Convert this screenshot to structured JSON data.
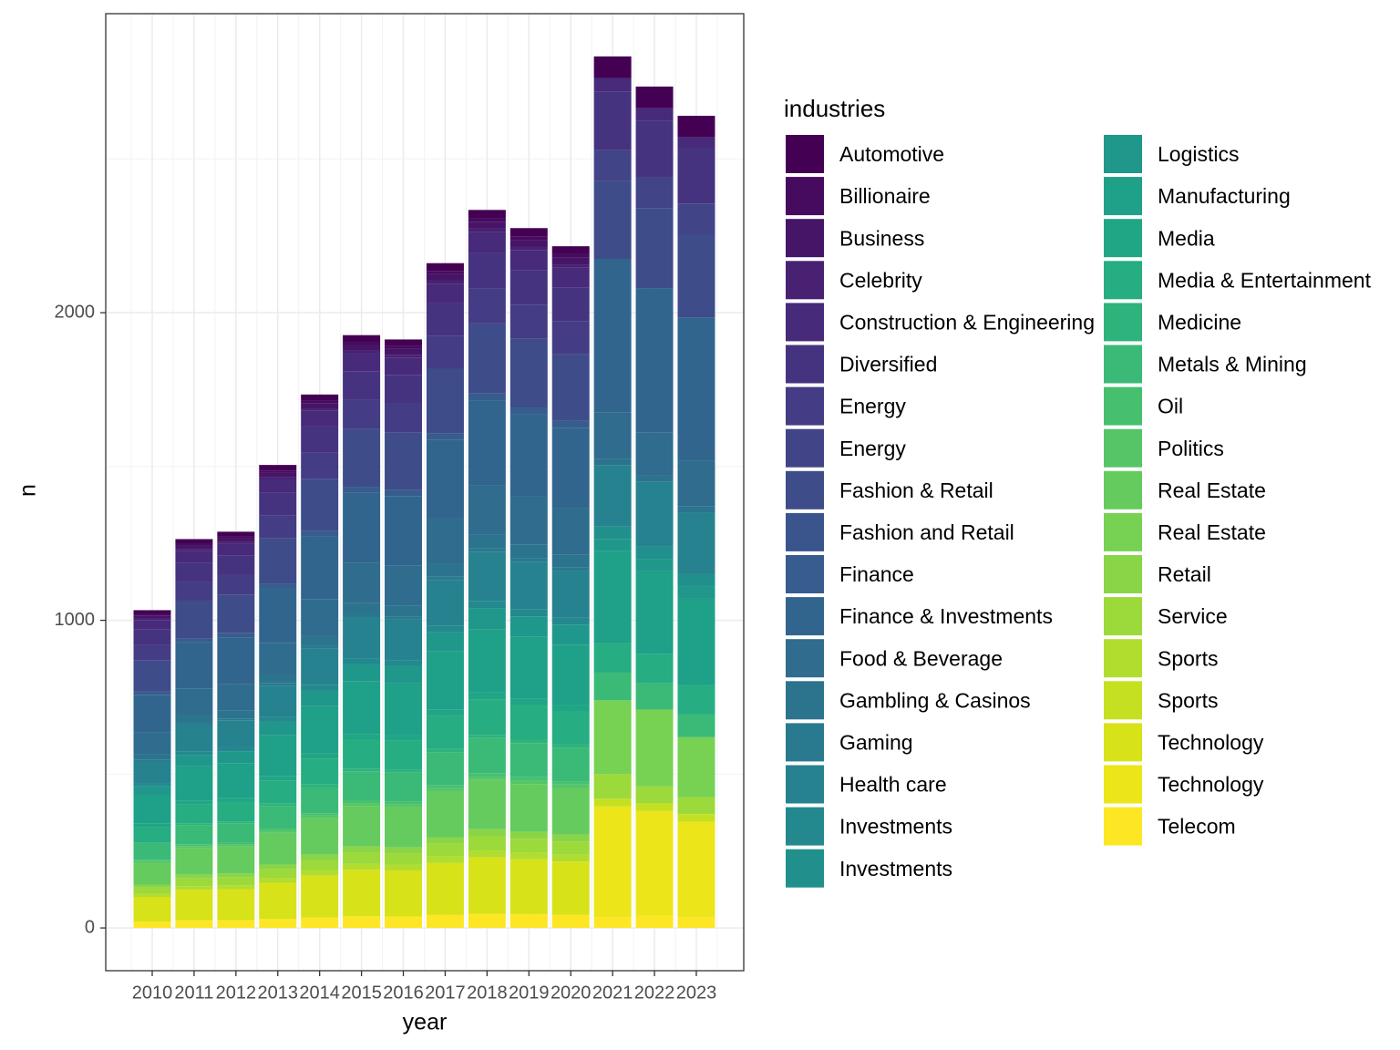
{
  "chart_data": {
    "type": "bar",
    "stacked": true,
    "grid": true,
    "legend_position": "right",
    "xlabel": "year",
    "ylabel": "n",
    "legend_title": "industries",
    "categories": [
      "2010",
      "2011",
      "2012",
      "2013",
      "2014",
      "2015",
      "2016",
      "2017",
      "2018",
      "2019",
      "2020",
      "2021",
      "2022",
      "2023"
    ],
    "ylim": [
      -139,
      2972
    ],
    "yticks": [
      0,
      1000,
      2000
    ],
    "series": [
      {
        "name": "Automotive",
        "color": "#440154",
        "values": [
          12,
          15,
          15,
          18,
          20,
          23,
          22,
          25,
          27,
          27,
          26,
          70,
          70,
          70
        ]
      },
      {
        "name": "Billionaire",
        "color": "#460B5E",
        "values": [
          5,
          6,
          6,
          7,
          8,
          9,
          9,
          11,
          11,
          11,
          11,
          0,
          0,
          0
        ]
      },
      {
        "name": "Business",
        "color": "#471567",
        "values": [
          10,
          12,
          13,
          15,
          17,
          19,
          19,
          21,
          23,
          22,
          22,
          0,
          0,
          0
        ]
      },
      {
        "name": "Celebrity",
        "color": "#482173",
        "values": [
          5,
          6,
          6,
          7,
          8,
          9,
          9,
          11,
          11,
          11,
          11,
          0,
          0,
          0
        ]
      },
      {
        "name": "Construction & Engineering",
        "color": "#472A7A",
        "values": [
          30,
          37,
          38,
          44,
          51,
          57,
          56,
          63,
          69,
          67,
          65,
          45,
          40,
          35
        ]
      },
      {
        "name": "Diversified",
        "color": "#46337F",
        "values": [
          51,
          62,
          63,
          74,
          85,
          94,
          94,
          106,
          114,
          111,
          108,
          190,
          185,
          180
        ]
      },
      {
        "name": "Energy",
        "color": "#443C84",
        "values": [
          51,
          62,
          63,
          74,
          85,
          94,
          94,
          106,
          114,
          111,
          108,
          0,
          0,
          0
        ]
      },
      {
        "name": "Energy",
        "color": "#414487",
        "values": [
          0,
          0,
          0,
          0,
          0,
          0,
          0,
          0,
          0,
          0,
          0,
          100,
          100,
          100
        ]
      },
      {
        "name": "Fashion & Retail",
        "color": "#3E4C8A",
        "values": [
          101,
          124,
          126,
          147,
          170,
          189,
          187,
          211,
          228,
          223,
          217,
          253,
          260,
          270
        ]
      },
      {
        "name": "Fashion and Retail",
        "color": "#3A548C",
        "values": [
          0,
          0,
          0,
          0,
          0,
          0,
          0,
          0,
          0,
          0,
          0,
          0,
          0,
          0
        ]
      },
      {
        "name": "Finance",
        "color": "#365D8D",
        "values": [
          10,
          12,
          13,
          15,
          17,
          19,
          19,
          21,
          23,
          22,
          22,
          0,
          0,
          0
        ]
      },
      {
        "name": "Finance & Investments",
        "color": "#32658E",
        "values": [
          121,
          149,
          151,
          177,
          204,
          226,
          225,
          254,
          274,
          267,
          260,
          500,
          470,
          465
        ]
      },
      {
        "name": "Food & Beverage",
        "color": "#2F6C8E",
        "values": [
          71,
          87,
          88,
          103,
          119,
          132,
          131,
          148,
          160,
          156,
          152,
          150,
          140,
          150
        ]
      },
      {
        "name": "Gambling & Casinos",
        "color": "#2C738E",
        "values": [
          20,
          25,
          25,
          29,
          34,
          38,
          37,
          42,
          46,
          45,
          43,
          20,
          20,
          20
        ]
      },
      {
        "name": "Gaming",
        "color": "#297A8E",
        "values": [
          5,
          6,
          6,
          7,
          8,
          9,
          9,
          11,
          11,
          11,
          11,
          0,
          0,
          0
        ]
      },
      {
        "name": "Health care",
        "color": "#26828E",
        "values": [
          71,
          87,
          88,
          103,
          119,
          132,
          131,
          148,
          160,
          156,
          152,
          200,
          210,
          200
        ]
      },
      {
        "name": "Investments",
        "color": "#23898E",
        "values": [
          10,
          12,
          13,
          15,
          17,
          19,
          19,
          21,
          23,
          22,
          22,
          0,
          0,
          0
        ]
      },
      {
        "name": "Investments",
        "color": "#21908C",
        "values": [
          0,
          0,
          0,
          0,
          0,
          0,
          0,
          0,
          0,
          0,
          0,
          40,
          40,
          40
        ]
      },
      {
        "name": "Logistics",
        "color": "#1F988B",
        "values": [
          30,
          37,
          38,
          44,
          51,
          57,
          56,
          63,
          69,
          67,
          65,
          40,
          40,
          40
        ]
      },
      {
        "name": "Manufacturing",
        "color": "#1FA088",
        "values": [
          91,
          111,
          114,
          133,
          153,
          170,
          169,
          190,
          206,
          201,
          195,
          300,
          270,
          280
        ]
      },
      {
        "name": "Media",
        "color": "#21A685",
        "values": [
          10,
          12,
          13,
          15,
          17,
          19,
          19,
          21,
          23,
          22,
          22,
          0,
          0,
          0
        ]
      },
      {
        "name": "Media & Entertainment",
        "color": "#26AD81",
        "values": [
          51,
          62,
          63,
          74,
          85,
          94,
          94,
          106,
          114,
          111,
          108,
          95,
          95,
          95
        ]
      },
      {
        "name": "Medicine",
        "color": "#2EB37C",
        "values": [
          5,
          6,
          6,
          7,
          8,
          9,
          9,
          11,
          11,
          11,
          11,
          0,
          0,
          0
        ]
      },
      {
        "name": "Metals & Mining",
        "color": "#3ABA76",
        "values": [
          51,
          62,
          63,
          74,
          85,
          94,
          94,
          106,
          114,
          111,
          108,
          90,
          85,
          75
        ]
      },
      {
        "name": "Oil",
        "color": "#46C06F",
        "values": [
          5,
          6,
          6,
          7,
          8,
          9,
          9,
          11,
          11,
          11,
          11,
          0,
          0,
          0
        ]
      },
      {
        "name": "Politics",
        "color": "#55C568",
        "values": [
          5,
          6,
          6,
          7,
          8,
          9,
          9,
          11,
          11,
          11,
          11,
          0,
          0,
          0
        ]
      },
      {
        "name": "Real Estate",
        "color": "#65CB5E",
        "values": [
          71,
          87,
          88,
          103,
          119,
          132,
          131,
          148,
          160,
          156,
          152,
          0,
          0,
          0
        ]
      },
      {
        "name": "Real Estate",
        "color": "#77D153",
        "values": [
          0,
          0,
          0,
          0,
          0,
          0,
          0,
          0,
          0,
          0,
          0,
          240,
          250,
          195
        ]
      },
      {
        "name": "Retail",
        "color": "#8AD547",
        "values": [
          10,
          12,
          13,
          15,
          17,
          19,
          19,
          21,
          23,
          22,
          22,
          0,
          0,
          0
        ]
      },
      {
        "name": "Service",
        "color": "#9CD93B",
        "values": [
          20,
          25,
          25,
          29,
          34,
          38,
          37,
          42,
          46,
          45,
          43,
          80,
          55,
          55
        ]
      },
      {
        "name": "Sports",
        "color": "#B1DD2F",
        "values": [
          10,
          12,
          13,
          15,
          17,
          19,
          19,
          21,
          23,
          22,
          22,
          0,
          0,
          0
        ]
      },
      {
        "name": "Sports",
        "color": "#C5E021",
        "values": [
          0,
          0,
          0,
          0,
          0,
          0,
          0,
          0,
          0,
          0,
          0,
          25,
          25,
          25
        ]
      },
      {
        "name": "Technology",
        "color": "#D8E219",
        "values": [
          81,
          99,
          101,
          118,
          136,
          151,
          150,
          169,
          183,
          178,
          173,
          0,
          0,
          0
        ]
      },
      {
        "name": "Technology",
        "color": "#EBE51A",
        "values": [
          0,
          0,
          0,
          0,
          0,
          0,
          0,
          0,
          0,
          0,
          0,
          360,
          340,
          310
        ]
      },
      {
        "name": "Telecom",
        "color": "#FDE725",
        "values": [
          20,
          25,
          25,
          29,
          34,
          38,
          37,
          42,
          46,
          45,
          43,
          35,
          40,
          35
        ]
      }
    ]
  }
}
